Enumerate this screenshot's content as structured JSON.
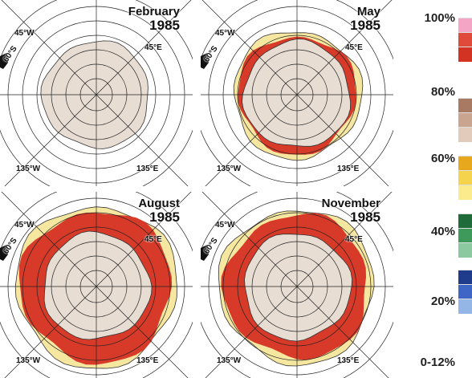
{
  "panels": [
    {
      "month": "February",
      "year": "1985",
      "extent": 0.62,
      "iceOuter": 0.7
    },
    {
      "month": "May",
      "year": "1985",
      "extent": 1.05,
      "iceOuter": 1.08
    },
    {
      "month": "August",
      "year": "1985",
      "extent": 1.35,
      "iceOuter": 1.38
    },
    {
      "month": "November",
      "year": "1985",
      "extent": 1.28,
      "iceOuter": 1.32
    }
  ],
  "grid_labels": {
    "nw": "45°W",
    "ne": "45°E",
    "sw": "135°W",
    "se": "135°E",
    "lat": "60°S"
  },
  "legend": {
    "levels": [
      "100%",
      "80%",
      "60%",
      "40%",
      "20%",
      "0-12%"
    ],
    "swatches": [
      "#f4a5c6",
      "#e04a3a",
      "#d23322",
      "#a87a64",
      "#c9a48e",
      "#e3cbbb",
      "#e8a81d",
      "#f6d34c",
      "#fbeb8c",
      "#1f6b3a",
      "#3e9a5a",
      "#8cc9a0",
      "#1f3c8c",
      "#3d66c7",
      "#93b6e7"
    ]
  },
  "colors": {
    "continent": "#e7ddd3",
    "iceRed": "#d73a28",
    "icePink": "#ee9ab8",
    "edgeYellow": "#f5e6a0",
    "gridLine": "#222222"
  }
}
